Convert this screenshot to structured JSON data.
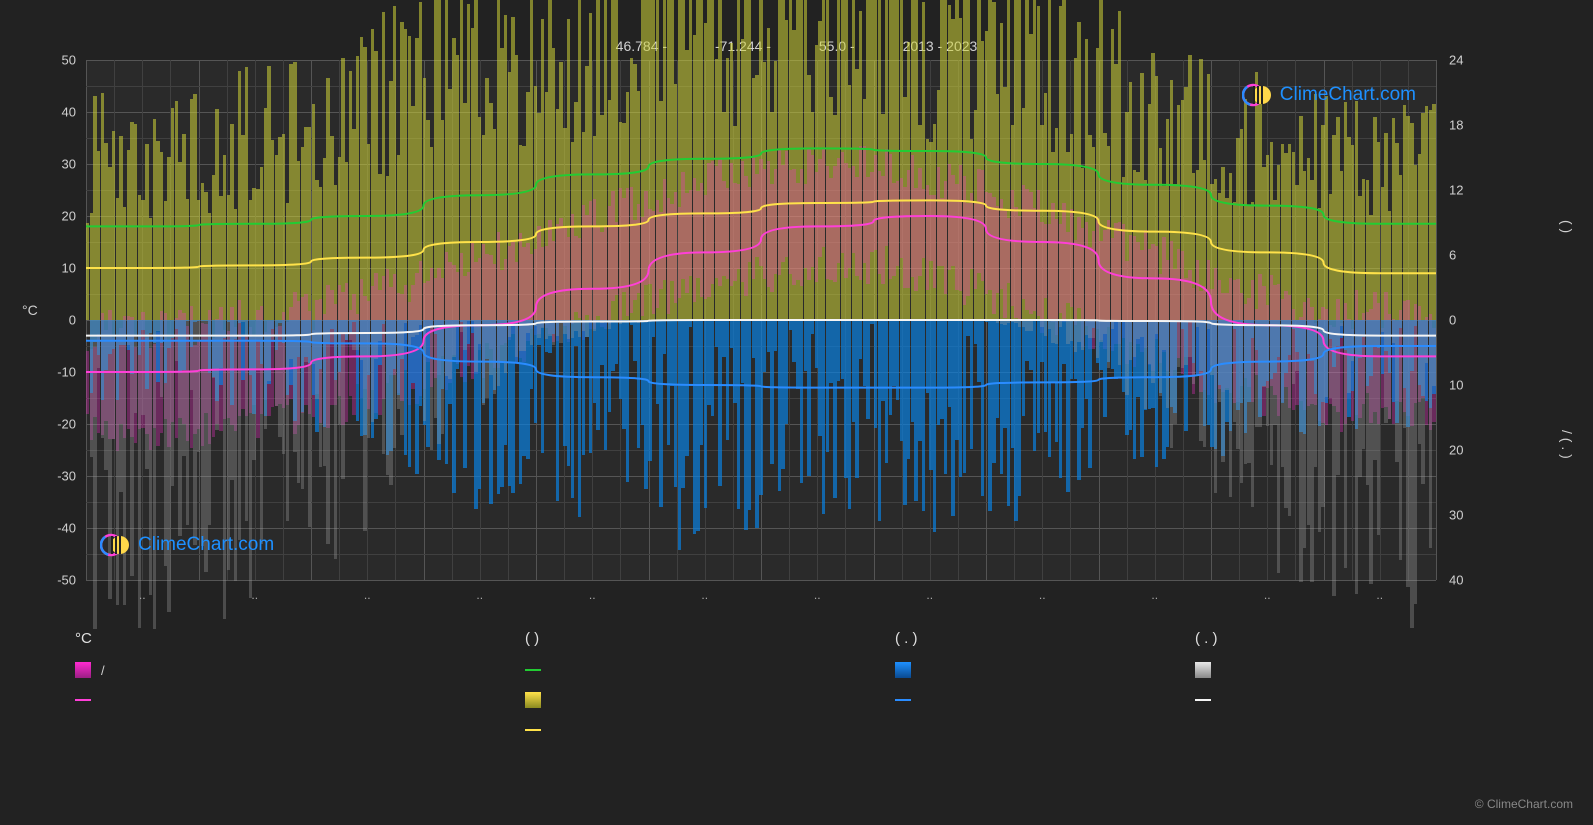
{
  "header": {
    "lat": "46.784 -",
    "lon": "-71.244 -",
    "alt": "55.0 -",
    "years": "2013 - 2023"
  },
  "brand": "ClimeChart.com",
  "footer": "© ClimeChart.com",
  "chart": {
    "type": "climate-chart",
    "background_color": "#2a2a2a",
    "grid_color": "#555555",
    "grid_minor_color": "#404040",
    "font_color": "#d0d0d0",
    "left_axis": {
      "title": "°C",
      "min": -50,
      "max": 50,
      "step": 10,
      "ticks": [
        50,
        40,
        30,
        20,
        10,
        0,
        -10,
        -20,
        -30,
        -40,
        -50
      ]
    },
    "right_axis": {
      "top_title": "( )",
      "bottom_title": "/ ( . )",
      "top": {
        "min": 0,
        "max": 24,
        "step": 6,
        "ticks": [
          24,
          18,
          12,
          6,
          0
        ]
      },
      "bottom": {
        "min": 0,
        "max": 40,
        "step": 10,
        "ticks": [
          10,
          20,
          30,
          40
        ]
      }
    },
    "x_axis": {
      "months": 12,
      "labels": [
        "..",
        "..",
        "..",
        "..",
        "..",
        "..",
        "..",
        "..",
        "..",
        "..",
        "..",
        ".."
      ]
    },
    "lines": {
      "green": {
        "color": "#22cc33",
        "width": 2,
        "values": [
          18,
          18.5,
          20,
          24,
          28,
          31,
          33,
          32.5,
          30,
          26,
          22,
          18.5
        ]
      },
      "yellow": {
        "color": "#ffe24a",
        "width": 2,
        "values": [
          10,
          10.5,
          12,
          15,
          18,
          20.5,
          22.5,
          23,
          21,
          17,
          13,
          9
        ]
      },
      "magenta": {
        "color": "#ff3fd8",
        "width": 2,
        "values": [
          -10,
          -9.5,
          -7,
          -1,
          6,
          13,
          18,
          20,
          15,
          8,
          -1,
          -7
        ]
      },
      "white": {
        "color": "#f5f5f5",
        "width": 2,
        "values": [
          -3,
          -3,
          -2.5,
          -1,
          -0.3,
          0,
          0,
          0,
          0,
          -0.2,
          -1,
          -3
        ]
      },
      "blue": {
        "color": "#2a8cff",
        "width": 2,
        "values": [
          -4,
          -4,
          -4.5,
          -8,
          -11,
          -12.5,
          -13,
          -13,
          -12,
          -11,
          -8,
          -5
        ]
      }
    },
    "bars": {
      "sun_yellow": {
        "color": "#cfd336",
        "opacity": 0.55,
        "series_avg": [
          15,
          16,
          18,
          22,
          26,
          29,
          29,
          28,
          26,
          22,
          18,
          15
        ]
      },
      "temp_magenta": {
        "color": "#ff2ad1",
        "opacity": 0.5,
        "series_avg": [
          -12,
          -11,
          -8,
          -2,
          6,
          14,
          19,
          21,
          15,
          7,
          -2,
          -8
        ]
      },
      "rain_blue": {
        "color": "#0a80e0",
        "opacity": 0.7,
        "series_avg": [
          6,
          6,
          8,
          12,
          15,
          16,
          17,
          16,
          15,
          13,
          10,
          8
        ]
      },
      "snow_grey": {
        "color": "#9a9a9a",
        "opacity": 0.5,
        "series_avg": [
          32,
          30,
          26,
          14,
          3,
          0,
          0,
          0,
          0,
          4,
          18,
          30
        ]
      }
    }
  },
  "legend": {
    "col1": {
      "header": "°C",
      "items": [
        {
          "type": "swatch-grad",
          "color1": "#ff2ad1",
          "color2": "#9b1f84",
          "label": "/"
        },
        {
          "type": "line",
          "color": "#ff3fd8",
          "label": ""
        }
      ]
    },
    "col2": {
      "header": "(        )",
      "items": [
        {
          "type": "line",
          "color": "#22cc33",
          "label": ""
        },
        {
          "type": "swatch-grad",
          "color1": "#ffe24a",
          "color2": "#8a8a20",
          "label": ""
        },
        {
          "type": "line",
          "color": "#ffe24a",
          "label": ""
        }
      ]
    },
    "col3": {
      "header": "(  . )",
      "items": [
        {
          "type": "swatch-grad",
          "color1": "#1e90ff",
          "color2": "#0a4a90",
          "label": ""
        },
        {
          "type": "line",
          "color": "#2a8cff",
          "label": ""
        }
      ]
    },
    "col4": {
      "header": "(  . )",
      "items": [
        {
          "type": "swatch-grad",
          "color1": "#e8e8e8",
          "color2": "#888888",
          "label": ""
        },
        {
          "type": "line",
          "color": "#f5f5f5",
          "label": ""
        }
      ]
    }
  }
}
